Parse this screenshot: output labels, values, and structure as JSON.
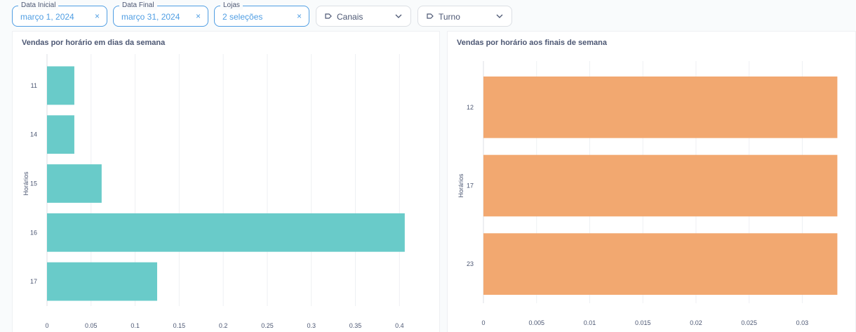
{
  "filters": {
    "data_inicial": {
      "label": "Data Inicial",
      "value": "março 1, 2024"
    },
    "data_final": {
      "label": "Data Final",
      "value": "março 31, 2024"
    },
    "lojas": {
      "label": "Lojas",
      "value": "2 seleções"
    },
    "canais": {
      "placeholder": "Canais"
    },
    "turno": {
      "placeholder": "Turno"
    },
    "clear_glyph": "×",
    "accent_color": "#509ee3"
  },
  "chart_data": [
    {
      "type": "bar",
      "orientation": "horizontal",
      "title": "Vendas por horário em dias da semana",
      "ylabel": "Horários",
      "xlabel": "",
      "categories": [
        "11",
        "14",
        "15",
        "16",
        "17"
      ],
      "values": [
        0.031,
        0.031,
        0.062,
        0.406,
        0.125
      ],
      "xticks": [
        "0",
        "0.05",
        "0.1",
        "0.15",
        "0.2",
        "0.25",
        "0.3",
        "0.35",
        "0.4"
      ],
      "xlim": [
        0,
        0.43
      ],
      "grid": true,
      "color": "#69cbc9"
    },
    {
      "type": "bar",
      "orientation": "horizontal",
      "title": "Vendas por horário aos finais de semana",
      "ylabel": "Horários",
      "xlabel": "",
      "categories": [
        "12",
        "17",
        "23"
      ],
      "values": [
        0.0333,
        0.0333,
        0.0333
      ],
      "xticks": [
        "0",
        "0.005",
        "0.01",
        "0.015",
        "0.02",
        "0.025",
        "0.03"
      ],
      "xlim": [
        0,
        0.0338
      ],
      "grid": true,
      "color": "#f2a870"
    }
  ]
}
